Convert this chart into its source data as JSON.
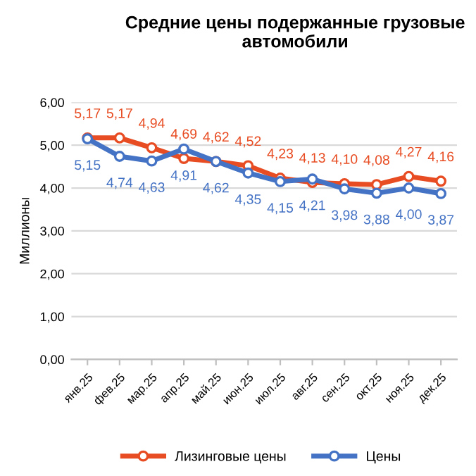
{
  "chart_data": {
    "type": "line",
    "title": "Средние цены подержанные грузовые автомобили",
    "ylabel": "Миллионы",
    "categories": [
      "янв.25",
      "фев.25",
      "мар.25",
      "апр.25",
      "май.25",
      "июн.25",
      "июл.25",
      "авг.25",
      "сен.25",
      "окт.25",
      "ноя.25",
      "дек.25"
    ],
    "series": [
      {
        "name": "Лизинговые цены",
        "color": "#e84c22",
        "values": [
          5.17,
          5.17,
          4.94,
          4.69,
          4.62,
          4.52,
          4.23,
          4.13,
          4.1,
          4.08,
          4.27,
          4.16
        ],
        "value_labels": [
          "5,17",
          "5,17",
          "4,94",
          "4,69",
          "4,62",
          "4,52",
          "4,23",
          "4,13",
          "4,10",
          "4,08",
          "4,27",
          "4,16"
        ]
      },
      {
        "name": "Цены",
        "color": "#4472c4",
        "values": [
          5.15,
          4.74,
          4.63,
          4.91,
          4.62,
          4.35,
          4.15,
          4.21,
          3.98,
          3.88,
          4.0,
          3.87
        ],
        "value_labels": [
          "5,15",
          "4,74",
          "4,63",
          "4,91",
          "4,62",
          "4,35",
          "4,15",
          "4,21",
          "3,98",
          "3,88",
          "4,00",
          "3,87"
        ]
      }
    ],
    "ylim": [
      0,
      6
    ],
    "yticks": [
      {
        "value": 0,
        "label": "0,00"
      },
      {
        "value": 1,
        "label": "1,00"
      },
      {
        "value": 2,
        "label": "2,00"
      },
      {
        "value": 3,
        "label": "3,00"
      },
      {
        "value": 4,
        "label": "4,00"
      },
      {
        "value": 5,
        "label": "5,00"
      },
      {
        "value": 6,
        "label": "6,00"
      }
    ],
    "grid": "y",
    "legend": "bottom",
    "marker": "circle",
    "line_style": "solid"
  }
}
